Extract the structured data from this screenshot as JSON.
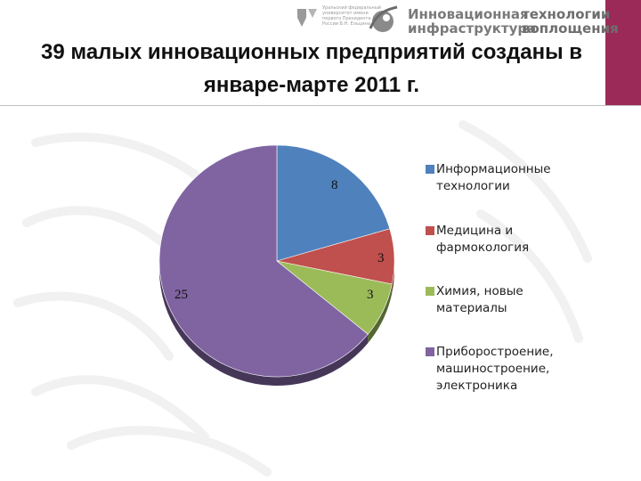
{
  "header": {
    "logo_small_text": "Уральский федеральный университет имени первого Президента России Б.Н. Ельцина",
    "brand_line1": "Инновационная",
    "brand_line2": "инфраструктура",
    "brand_right1": "технологии",
    "brand_right2": "воплощения",
    "accent_color": "#9b2a58"
  },
  "title": "39 малых инновационных предприятий созданы в январе-марте 2011 г.",
  "chart_data": {
    "type": "pie",
    "series": [
      {
        "categories": [
          "Информационные технологии",
          "Медицина и фармокология",
          "Химия, новые материалы",
          "Приборостроение, машиностроение, электроника"
        ],
        "values": [
          8,
          3,
          3,
          25
        ],
        "colors": [
          "#4f81bd",
          "#c0504d",
          "#9bbb59",
          "#8064a2"
        ]
      }
    ],
    "data_labels": [
      "8",
      "3",
      "3",
      "25"
    ],
    "legend_position": "right",
    "start_angle_deg": 0,
    "direction": "clockwise"
  }
}
